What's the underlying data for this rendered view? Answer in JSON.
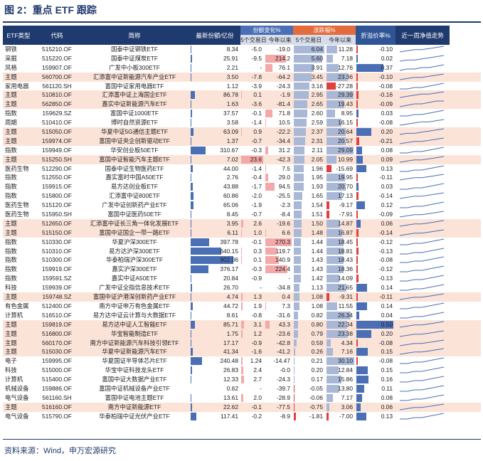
{
  "title": "图 2：重点 ETF 跟踪",
  "source": "资料来源：Wind，申万宏源研究",
  "headers": {
    "type": "ETF类型",
    "code": "代码",
    "name": "简称",
    "share": "最新份额/亿份",
    "share_change": "份额变化%",
    "price_change": "涨跌幅%",
    "discount": "折溢价率%",
    "trend": "近一周净值走势",
    "sub_5d": "5个交易日",
    "sub_ytd": "今年以来"
  },
  "colors": {
    "header_bg": "#1f3a6e",
    "share_hdr": "#4a6fb5",
    "sharechg_hdr": "#c9d5ee",
    "price_hdr": "#e46c3c",
    "disc_hdr": "#2f5597",
    "theme_shade": "#fbe3d8",
    "bar_blue": "#4a6fb5",
    "bar_red": "#e04040",
    "bar_pink": "#f4a8a8",
    "bar_gray": "#a9b8d6"
  },
  "rows": [
    {
      "type": "钢铁",
      "code": "515210.OF",
      "name": "国泰中证钢铁ETF",
      "share": "8.34",
      "s5": "-5.0",
      "sy": "-19.0",
      "p5": "6.04",
      "py": "11.28",
      "disc": "-0.10",
      "shade": false,
      "trend": [
        3,
        4,
        5,
        5,
        6,
        7,
        8
      ]
    },
    {
      "type": "采掘",
      "code": "515220.OF",
      "name": "国泰中证煤炭ETF",
      "share": "25.91",
      "s5": "-9.5",
      "sy": "214.2",
      "p5": "5.60",
      "py": "7.18",
      "disc": "0.02",
      "shade": false,
      "trend": [
        3,
        4,
        4,
        5,
        6,
        7,
        8
      ]
    },
    {
      "type": "风格",
      "code": "159907.OF",
      "name": "广发中小板300ETF",
      "share": "2.21",
      "s5": "-",
      "sy": "76.1",
      "p5": "3.91",
      "py": "12.76",
      "disc": "0.37",
      "shade": false,
      "trend": [
        4,
        5,
        5,
        6,
        6,
        7,
        8
      ]
    },
    {
      "type": "主题",
      "code": "560700.OF",
      "name": "汇添富中证新能源汽车产业ETF",
      "share": "3.50",
      "s5": "-7.8",
      "sy": "-64.2",
      "p5": "3.45",
      "py": "23.36",
      "disc": "-0.10",
      "shade": true,
      "trend": [
        3,
        4,
        5,
        5,
        6,
        7,
        8
      ]
    },
    {
      "type": "家用电器",
      "code": "561120.SH",
      "name": "富国中证家用电器ETF",
      "share": "1.12",
      "s5": "-3.9",
      "sy": "-24.3",
      "p5": "3.16",
      "py": "-27.28",
      "disc": "-0.08",
      "shade": false,
      "trend": [
        4,
        4,
        5,
        5,
        6,
        7,
        8
      ]
    },
    {
      "type": "主题",
      "code": "510810.OF",
      "name": "汇添富中证上海国企ETF",
      "share": "86.78",
      "s5": "0.1",
      "sy": "-1.9",
      "p5": "2.95",
      "py": "29.39",
      "disc": "-0.16",
      "shade": true,
      "trend": [
        3,
        4,
        5,
        6,
        6,
        7,
        8
      ]
    },
    {
      "type": "主题",
      "code": "562850.OF",
      "name": "嘉实中证新能源汽车ETF",
      "share": "1.63",
      "s5": "-3.6",
      "sy": "-81.4",
      "p5": "2.65",
      "py": "19.43",
      "disc": "-0.09",
      "shade": true,
      "trend": [
        3,
        4,
        5,
        5,
        6,
        7,
        7
      ]
    },
    {
      "type": "指数",
      "code": "159629.SZ",
      "name": "富国中证1000ETF",
      "share": "37.57",
      "s5": "-0.1",
      "sy": "71.8",
      "p5": "2.60",
      "py": "8.95",
      "disc": "0.03",
      "shade": false,
      "trend": [
        4,
        4,
        5,
        5,
        6,
        7,
        8
      ]
    },
    {
      "type": "周期",
      "code": "510410.OF",
      "name": "博时自然资源ETF",
      "share": "3.58",
      "s5": "-1.4",
      "sy": "10.5",
      "p5": "2.59",
      "py": "16.15",
      "disc": "-0.08",
      "shade": false,
      "trend": [
        3,
        4,
        5,
        6,
        6,
        7,
        8
      ]
    },
    {
      "type": "主题",
      "code": "515050.OF",
      "name": "华夏中证5G通信主题ETF",
      "share": "63.09",
      "s5": "0.9",
      "sy": "-22.2",
      "p5": "2.37",
      "py": "20.64",
      "disc": "0.20",
      "shade": true,
      "trend": [
        3,
        4,
        4,
        5,
        6,
        7,
        8
      ]
    },
    {
      "type": "主题",
      "code": "159974.OF",
      "name": "富国中证央企创新驱动ETF",
      "share": "1.37",
      "s5": "-0.7",
      "sy": "-34.4",
      "p5": "2.31",
      "py": "20.57",
      "disc": "-0.21",
      "shade": true,
      "trend": [
        3,
        4,
        5,
        5,
        6,
        7,
        8
      ]
    },
    {
      "type": "指数",
      "code": "159949.OF",
      "name": "华安创业板50ETF",
      "share": "310.67",
      "s5": "-0.3",
      "sy": "31.2",
      "p5": "2.11",
      "py": "29.09",
      "disc": "0.08",
      "shade": false,
      "trend": [
        4,
        4,
        5,
        5,
        6,
        7,
        8
      ]
    },
    {
      "type": "主题",
      "code": "515250.SH",
      "name": "富国中证智能汽车主题ETF",
      "share": "7.02",
      "s5": "23.6",
      "sy": "-42.3",
      "p5": "2.05",
      "py": "10.99",
      "disc": "0.09",
      "shade": true,
      "trend": [
        3,
        4,
        5,
        5,
        6,
        7,
        8
      ]
    },
    {
      "type": "医药生物",
      "code": "512290.OF",
      "name": "国泰中证生物医药ETF",
      "share": "44.00",
      "s5": "-1.4",
      "sy": "7.5",
      "p5": "1.96",
      "py": "-15.69",
      "disc": "0.13",
      "shade": false,
      "trend": [
        4,
        4,
        5,
        5,
        6,
        7,
        8
      ]
    },
    {
      "type": "指数",
      "code": "512550.OF",
      "name": "嘉实富时中国A50ETF",
      "share": "2.76",
      "s5": "-0.4",
      "sy": "29.0",
      "p5": "1.95",
      "py": "19.95",
      "disc": "-0.11",
      "shade": false,
      "trend": [
        3,
        4,
        5,
        5,
        6,
        7,
        8
      ]
    },
    {
      "type": "指数",
      "code": "159915.OF",
      "name": "易方达创业板ETF",
      "share": "43.88",
      "s5": "-1.7",
      "sy": "94.5",
      "p5": "1.93",
      "py": "20.70",
      "disc": "0.03",
      "shade": false,
      "trend": [
        4,
        4,
        5,
        5,
        6,
        7,
        8
      ]
    },
    {
      "type": "指数",
      "code": "515800.OF",
      "name": "汇添富中证800ETF",
      "share": "60.86",
      "s5": "-2.0",
      "sy": "-25.5",
      "p5": "1.65",
      "py": "17.13",
      "disc": "-0.14",
      "shade": false,
      "trend": [
        3,
        4,
        5,
        5,
        6,
        7,
        8
      ]
    },
    {
      "type": "医药生物",
      "code": "515120.OF",
      "name": "广发中证创新药产业ETF",
      "share": "65.06",
      "s5": "-1.9",
      "sy": "-2.3",
      "p5": "1.54",
      "py": "-9.17",
      "disc": "0.12",
      "shade": false,
      "trend": [
        4,
        4,
        5,
        5,
        6,
        7,
        8
      ]
    },
    {
      "type": "医药生物",
      "code": "515950.SH",
      "name": "富国中证医药50ETF",
      "share": "8.45",
      "s5": "-0.7",
      "sy": "-8.4",
      "p5": "1.51",
      "py": "-7.91",
      "disc": "-0.09",
      "shade": false,
      "trend": [
        3,
        4,
        5,
        5,
        6,
        7,
        8
      ]
    },
    {
      "type": "主题",
      "code": "512650.OF",
      "name": "汇添富中证长三角一体化发展ETF",
      "share": "3.95",
      "s5": "2.6",
      "sy": "-19.6",
      "p5": "1.50",
      "py": "14.87",
      "disc": "0.06",
      "shade": true,
      "trend": [
        3,
        4,
        5,
        5,
        6,
        7,
        8
      ]
    },
    {
      "type": "主题",
      "code": "515150.OF",
      "name": "富国中证国企一带一路ETF",
      "share": "6.11",
      "s5": "1.0",
      "sy": "6.6",
      "p5": "1.48",
      "py": "16.87",
      "disc": "-0.14",
      "shade": true,
      "trend": [
        3,
        4,
        5,
        5,
        6,
        7,
        8
      ]
    },
    {
      "type": "指数",
      "code": "510330.OF",
      "name": "华夏沪深300ETF",
      "share": "397.78",
      "s5": "-0.1",
      "sy": "270.3",
      "p5": "1.44",
      "py": "18.45",
      "disc": "-0.12",
      "shade": false,
      "trend": [
        4,
        4,
        5,
        5,
        6,
        7,
        8
      ]
    },
    {
      "type": "指数",
      "code": "510310.OF",
      "name": "易方达沪深300ETF",
      "share": "640.15",
      "s5": "0.3",
      "sy": "119.7",
      "p5": "1.44",
      "py": "18.81",
      "disc": "-0.13",
      "shade": false,
      "trend": [
        4,
        4,
        5,
        5,
        6,
        7,
        8
      ]
    },
    {
      "type": "指数",
      "code": "510300.OF",
      "name": "华泰柏瑞沪深300ETF",
      "share": "902.06",
      "s5": "0.1",
      "sy": "140.9",
      "p5": "1.43",
      "py": "18.43",
      "disc": "-0.08",
      "shade": false,
      "trend": [
        4,
        4,
        5,
        5,
        6,
        7,
        8
      ]
    },
    {
      "type": "指数",
      "code": "159919.OF",
      "name": "嘉实沪深300ETF",
      "share": "376.17",
      "s5": "-0.3",
      "sy": "224.4",
      "p5": "1.43",
      "py": "18.36",
      "disc": "-0.12",
      "shade": false,
      "trend": [
        4,
        4,
        5,
        5,
        6,
        7,
        8
      ]
    },
    {
      "type": "指数",
      "code": "159591.SZ",
      "name": "嘉实中证A50ETF",
      "share": "20.84",
      "s5": "-0.9",
      "sy": "-",
      "p5": "1.42",
      "py": "14.09",
      "disc": "-0.13",
      "shade": false,
      "trend": [
        4,
        4,
        5,
        5,
        6,
        7,
        8
      ]
    },
    {
      "type": "科技",
      "code": "159939.OF",
      "name": "广发中证全指信息技术ETF",
      "share": "26.70",
      "s5": "-",
      "sy": "-34.8",
      "p5": "1.13",
      "py": "21.65",
      "disc": "0.14",
      "shade": false,
      "trend": [
        4,
        4,
        5,
        5,
        6,
        7,
        8
      ]
    },
    {
      "type": "主题",
      "code": "159748.SZ",
      "name": "富国中证沪港深创新药产业ETF",
      "share": "4.74",
      "s5": "1.3",
      "sy": "0.4",
      "p5": "1.08",
      "py": "-9.31",
      "disc": "-0.11",
      "shade": true,
      "trend": [
        3,
        4,
        5,
        5,
        6,
        7,
        8
      ]
    },
    {
      "type": "有色金属",
      "code": "512400.OF",
      "name": "南方中证申万有色金属ETF",
      "share": "44.72",
      "s5": "1.9",
      "sy": "7.3",
      "p5": "1.08",
      "py": "11.55",
      "disc": "0.14",
      "shade": false,
      "trend": [
        4,
        4,
        5,
        5,
        6,
        7,
        8
      ]
    },
    {
      "type": "计算机",
      "code": "516510.OF",
      "name": "易方达中证云计算与大数据ETF",
      "share": "8.61",
      "s5": "-0.8",
      "sy": "-31.6",
      "p5": "0.82",
      "py": "26.34",
      "disc": "0.04",
      "shade": false,
      "trend": [
        4,
        4,
        5,
        5,
        6,
        7,
        8
      ]
    },
    {
      "type": "主题",
      "code": "159819.OF",
      "name": "易方达中证人工智能ETF",
      "share": "85.71",
      "s5": "3.1",
      "sy": "43.3",
      "p5": "0.80",
      "py": "22.34",
      "disc": "0.50",
      "shade": true,
      "trend": [
        3,
        4,
        5,
        5,
        6,
        7,
        8
      ]
    },
    {
      "type": "主题",
      "code": "516800.OF",
      "name": "华宝智能制造ETF",
      "share": "1.75",
      "s5": "1.2",
      "sy": "-23.6",
      "p5": "0.79",
      "py": "23.38",
      "disc": "0.20",
      "shade": true,
      "trend": [
        3,
        4,
        5,
        5,
        6,
        7,
        8
      ]
    },
    {
      "type": "主题",
      "code": "560170.OF",
      "name": "南方中证新能源汽车科技引领ETF",
      "share": "17.17",
      "s5": "-0.9",
      "sy": "-42.8",
      "p5": "0.59",
      "py": "4.34",
      "disc": "-0.08",
      "shade": true,
      "trend": [
        3,
        4,
        5,
        5,
        6,
        7,
        8
      ]
    },
    {
      "type": "主题",
      "code": "515030.OF",
      "name": "华夏中证新能源汽车ETF",
      "share": "41.34",
      "s5": "-1.6",
      "sy": "-41.2",
      "p5": "0.26",
      "py": "7.16",
      "disc": "0.15",
      "shade": true,
      "trend": [
        3,
        4,
        5,
        5,
        6,
        7,
        8
      ]
    },
    {
      "type": "电子",
      "code": "159995.OF",
      "name": "华夏国证半导体芯片ETF",
      "share": "240.48",
      "s5": "1.24",
      "sy": "-14.47",
      "p5": "0.21",
      "py": "30.10",
      "disc": "-0.08",
      "shade": false,
      "trend": [
        4,
        4,
        5,
        5,
        6,
        7,
        8
      ]
    },
    {
      "type": "科技",
      "code": "515000.OF",
      "name": "华宝中证科技龙头ETF",
      "share": "26.83",
      "s5": "2.4",
      "sy": "-0.0",
      "p5": "0.20",
      "py": "12.84",
      "disc": "0.15",
      "shade": false,
      "trend": [
        4,
        4,
        5,
        5,
        6,
        7,
        8
      ]
    },
    {
      "type": "计算机",
      "code": "515400.OF",
      "name": "富国中证大数据产业ETF",
      "share": "12.33",
      "s5": "2.7",
      "sy": "-24.3",
      "p5": "0.17",
      "py": "15.86",
      "disc": "0.16",
      "shade": false,
      "trend": [
        4,
        4,
        5,
        5,
        6,
        7,
        8
      ]
    },
    {
      "type": "机械设备",
      "code": "159886.OF",
      "name": "富国中证机械设备产业ETF",
      "share": "0.62",
      "s5": "-",
      "sy": "-39.7",
      "p5": "-0.05",
      "py": "13.80",
      "disc": "0.11",
      "shade": false,
      "trend": [
        4,
        4,
        5,
        5,
        6,
        7,
        8
      ]
    },
    {
      "type": "电气设备",
      "code": "561160.SH",
      "name": "富国中证电池主题ETF",
      "share": "13.61",
      "s5": "2.0",
      "sy": "-28.9",
      "p5": "-0.06",
      "py": "7.17",
      "disc": "0.08",
      "shade": false,
      "trend": [
        4,
        4,
        5,
        5,
        6,
        7,
        8
      ]
    },
    {
      "type": "主题",
      "code": "516160.OF",
      "name": "南方中证新能源ETF",
      "share": "22.62",
      "s5": "-0.1",
      "sy": "-77.5",
      "p5": "-0.75",
      "py": "3.06",
      "disc": "0.06",
      "shade": true,
      "trend": [
        3,
        4,
        5,
        5,
        6,
        7,
        8
      ]
    },
    {
      "type": "电气设备",
      "code": "515790.OF",
      "name": "华泰柏瑞中证光伏产业ETF",
      "share": "117.41",
      "s5": "-0.2",
      "sy": "-8.9",
      "p5": "-1.81",
      "py": "-7.00",
      "disc": "0.13",
      "shade": false,
      "trend": [
        4,
        4,
        5,
        5,
        6,
        7,
        8
      ]
    }
  ]
}
